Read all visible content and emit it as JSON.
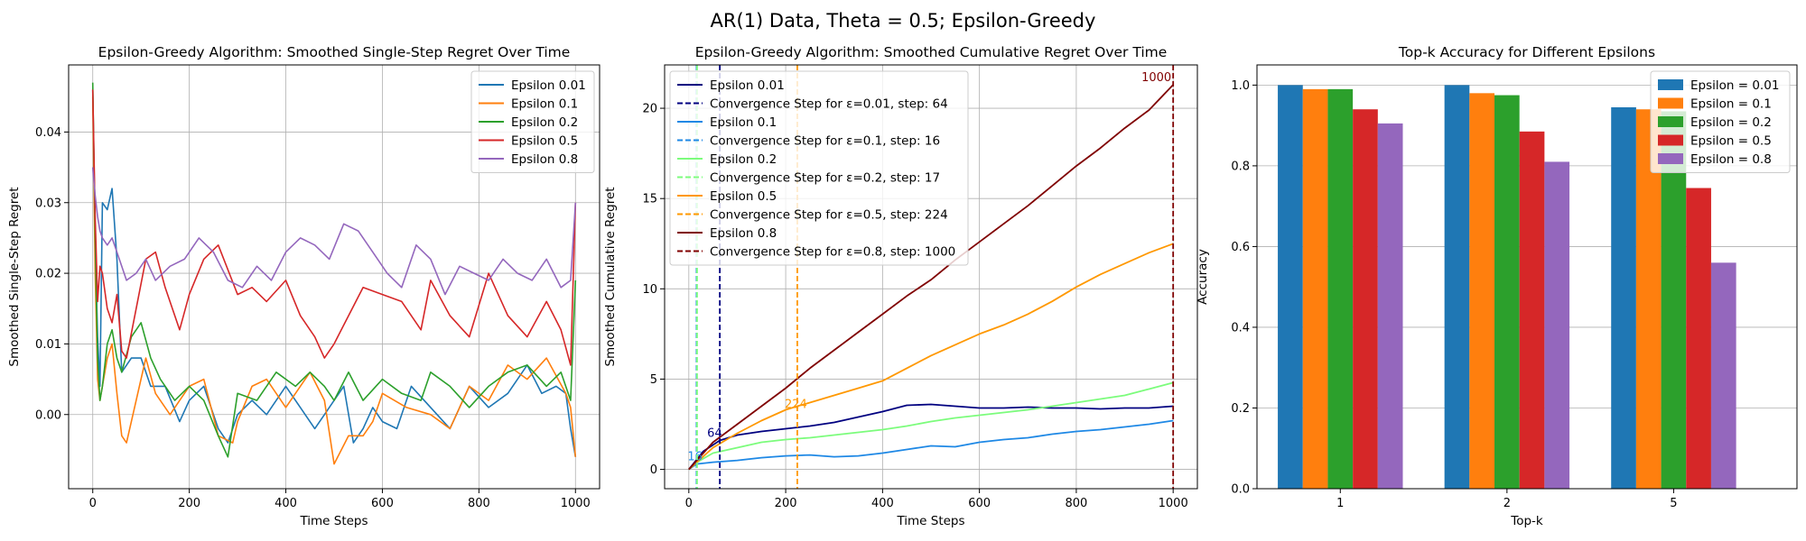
{
  "figure": {
    "suptitle": "AR(1) Data, Theta = 0.5; Epsilon-Greedy"
  },
  "chart_data": [
    {
      "type": "line",
      "title": "Epsilon-Greedy Algorithm: Smoothed Single-Step Regret Over Time",
      "xlabel": "Time Steps",
      "ylabel": "Smoothed Single-Step Regret",
      "xlim": [
        -50,
        1050
      ],
      "ylim": [
        -0.0105,
        0.0495
      ],
      "xticks": [
        0,
        200,
        400,
        600,
        800,
        1000
      ],
      "yticks": [
        0.0,
        0.01,
        0.02,
        0.03,
        0.04
      ],
      "ytick_labels": [
        "0.00",
        "0.01",
        "0.02",
        "0.03",
        "0.04"
      ],
      "grid": true,
      "legend_position": "top-right",
      "series": [
        {
          "name": "Epsilon 0.01",
          "color": "#1f77b4",
          "x": [
            0,
            5,
            10,
            15,
            20,
            30,
            40,
            50,
            60,
            80,
            100,
            120,
            150,
            180,
            200,
            230,
            260,
            280,
            300,
            330,
            360,
            400,
            430,
            460,
            480,
            500,
            520,
            540,
            560,
            580,
            600,
            630,
            660,
            700,
            740,
            780,
            820,
            860,
            900,
            930,
            960,
            980,
            990,
            1000
          ],
          "y": [
            0.046,
            0.024,
            0.011,
            0.004,
            0.03,
            0.029,
            0.032,
            0.022,
            0.006,
            0.008,
            0.008,
            0.004,
            0.004,
            -0.001,
            0.002,
            0.004,
            -0.002,
            -0.004,
            0.0,
            0.002,
            0.0,
            0.004,
            0.001,
            -0.002,
            0.0,
            0.002,
            0.004,
            -0.004,
            -0.002,
            0.001,
            -0.001,
            -0.002,
            0.004,
            0.001,
            -0.002,
            0.004,
            0.001,
            0.003,
            0.007,
            0.003,
            0.004,
            0.003,
            -0.002,
            -0.006
          ]
        },
        {
          "name": "Epsilon 0.1",
          "color": "#ff7f0e",
          "x": [
            0,
            5,
            10,
            15,
            20,
            30,
            40,
            50,
            60,
            70,
            90,
            110,
            130,
            160,
            200,
            230,
            260,
            290,
            300,
            330,
            360,
            400,
            430,
            450,
            480,
            500,
            530,
            560,
            580,
            600,
            650,
            700,
            740,
            780,
            820,
            860,
            900,
            940,
            980,
            990,
            1000
          ],
          "y": [
            0.045,
            0.02,
            0.005,
            0.002,
            0.004,
            0.008,
            0.01,
            0.003,
            -0.003,
            -0.004,
            0.002,
            0.008,
            0.003,
            0.0,
            0.004,
            0.005,
            -0.003,
            -0.004,
            -0.001,
            0.004,
            0.005,
            0.001,
            0.004,
            0.006,
            0.002,
            -0.007,
            -0.003,
            -0.003,
            -0.001,
            0.003,
            0.001,
            0.0,
            -0.002,
            0.004,
            0.002,
            0.007,
            0.005,
            0.008,
            0.003,
            0.001,
            -0.006
          ]
        },
        {
          "name": "Epsilon 0.2",
          "color": "#2ca02c",
          "x": [
            0,
            5,
            10,
            15,
            20,
            30,
            40,
            50,
            60,
            80,
            100,
            120,
            140,
            170,
            200,
            230,
            260,
            280,
            300,
            340,
            380,
            420,
            450,
            480,
            500,
            530,
            560,
            600,
            640,
            680,
            700,
            740,
            780,
            820,
            860,
            900,
            940,
            970,
            990,
            1000
          ],
          "y": [
            0.047,
            0.025,
            0.008,
            0.002,
            0.004,
            0.01,
            0.012,
            0.008,
            0.006,
            0.011,
            0.013,
            0.008,
            0.005,
            0.002,
            0.004,
            0.002,
            -0.003,
            -0.006,
            0.003,
            0.002,
            0.006,
            0.004,
            0.006,
            0.004,
            0.002,
            0.006,
            0.002,
            0.005,
            0.003,
            0.002,
            0.006,
            0.004,
            0.001,
            0.004,
            0.006,
            0.007,
            0.004,
            0.006,
            0.002,
            0.019
          ]
        },
        {
          "name": "Epsilon 0.5",
          "color": "#d62728",
          "x": [
            0,
            5,
            10,
            15,
            20,
            30,
            40,
            50,
            60,
            70,
            90,
            110,
            130,
            150,
            180,
            200,
            230,
            260,
            300,
            330,
            360,
            400,
            430,
            460,
            480,
            500,
            530,
            560,
            600,
            640,
            680,
            700,
            740,
            780,
            820,
            860,
            900,
            940,
            970,
            990,
            1000
          ],
          "y": [
            0.046,
            0.028,
            0.016,
            0.021,
            0.02,
            0.015,
            0.013,
            0.017,
            0.009,
            0.008,
            0.015,
            0.022,
            0.023,
            0.018,
            0.012,
            0.017,
            0.022,
            0.024,
            0.017,
            0.018,
            0.016,
            0.019,
            0.014,
            0.011,
            0.008,
            0.01,
            0.014,
            0.018,
            0.017,
            0.016,
            0.012,
            0.019,
            0.014,
            0.011,
            0.02,
            0.014,
            0.011,
            0.016,
            0.012,
            0.007,
            0.03
          ]
        },
        {
          "name": "Epsilon 0.8",
          "color": "#9467bd",
          "x": [
            0,
            5,
            10,
            15,
            20,
            30,
            40,
            50,
            60,
            70,
            90,
            110,
            130,
            160,
            190,
            220,
            250,
            280,
            310,
            340,
            370,
            400,
            430,
            460,
            490,
            520,
            550,
            580,
            610,
            640,
            670,
            700,
            730,
            760,
            790,
            820,
            850,
            880,
            910,
            940,
            970,
            990,
            1000
          ],
          "y": [
            0.035,
            0.031,
            0.028,
            0.026,
            0.025,
            0.024,
            0.025,
            0.023,
            0.021,
            0.019,
            0.02,
            0.022,
            0.019,
            0.021,
            0.022,
            0.025,
            0.023,
            0.019,
            0.018,
            0.021,
            0.019,
            0.023,
            0.025,
            0.024,
            0.022,
            0.027,
            0.026,
            0.023,
            0.02,
            0.018,
            0.024,
            0.022,
            0.017,
            0.021,
            0.02,
            0.019,
            0.022,
            0.02,
            0.019,
            0.022,
            0.018,
            0.019,
            0.03
          ]
        }
      ]
    },
    {
      "type": "line",
      "title": "Epsilon-Greedy Algorithm: Smoothed Cumulative Regret Over Time",
      "xlabel": "Time Steps",
      "ylabel": "Smoothed Cumulative Regret",
      "xlim": [
        -50,
        1050
      ],
      "ylim": [
        -1.07,
        22.4
      ],
      "xticks": [
        0,
        200,
        400,
        600,
        800,
        1000
      ],
      "yticks": [
        0,
        5,
        10,
        15,
        20
      ],
      "grid": true,
      "legend_position": "top-left",
      "series": [
        {
          "name": "Epsilon 0.01",
          "color": "#000080",
          "x": [
            0,
            30,
            64,
            100,
            150,
            200,
            250,
            300,
            350,
            400,
            450,
            500,
            550,
            600,
            650,
            700,
            750,
            800,
            850,
            900,
            950,
            1000
          ],
          "y": [
            0,
            1.0,
            1.6,
            1.9,
            2.1,
            2.25,
            2.4,
            2.6,
            2.9,
            3.2,
            3.55,
            3.6,
            3.5,
            3.4,
            3.4,
            3.45,
            3.4,
            3.4,
            3.35,
            3.4,
            3.4,
            3.5
          ]
        },
        {
          "name": "Epsilon 0.1",
          "color": "#1e88e5",
          "x": [
            0,
            16,
            50,
            100,
            150,
            200,
            250,
            300,
            350,
            400,
            450,
            500,
            550,
            600,
            650,
            700,
            750,
            800,
            850,
            900,
            950,
            1000
          ],
          "y": [
            0,
            0.3,
            0.4,
            0.5,
            0.65,
            0.75,
            0.8,
            0.7,
            0.75,
            0.9,
            1.1,
            1.3,
            1.25,
            1.5,
            1.65,
            1.75,
            1.95,
            2.1,
            2.2,
            2.35,
            2.5,
            2.7
          ]
        },
        {
          "name": "Epsilon 0.2",
          "color": "#7cfc7c",
          "x": [
            0,
            17,
            50,
            100,
            150,
            200,
            250,
            300,
            350,
            400,
            450,
            500,
            550,
            600,
            650,
            700,
            750,
            800,
            850,
            900,
            950,
            1000
          ],
          "y": [
            0,
            0.4,
            0.9,
            1.2,
            1.5,
            1.65,
            1.75,
            1.9,
            2.05,
            2.2,
            2.4,
            2.65,
            2.85,
            3.0,
            3.15,
            3.3,
            3.5,
            3.7,
            3.9,
            4.1,
            4.45,
            4.8
          ]
        },
        {
          "name": "Epsilon 0.5",
          "color": "#ff9800",
          "x": [
            0,
            50,
            100,
            150,
            200,
            224,
            250,
            300,
            350,
            400,
            450,
            500,
            550,
            600,
            650,
            700,
            750,
            800,
            850,
            900,
            950,
            1000
          ],
          "y": [
            0,
            1.2,
            2.0,
            2.7,
            3.3,
            3.5,
            3.7,
            4.1,
            4.5,
            4.9,
            5.6,
            6.3,
            6.9,
            7.5,
            8.0,
            8.6,
            9.3,
            10.1,
            10.8,
            11.4,
            12.0,
            12.5
          ]
        },
        {
          "name": "Epsilon 0.8",
          "color": "#800000",
          "x": [
            0,
            50,
            100,
            150,
            200,
            250,
            300,
            350,
            400,
            450,
            500,
            550,
            600,
            650,
            700,
            750,
            800,
            850,
            900,
            950,
            1000
          ],
          "y": [
            0,
            1.5,
            2.5,
            3.5,
            4.5,
            5.6,
            6.6,
            7.6,
            8.6,
            9.6,
            10.5,
            11.6,
            12.6,
            13.6,
            14.6,
            15.7,
            16.8,
            17.8,
            18.9,
            19.9,
            21.3
          ]
        }
      ],
      "convergence": [
        {
          "name": "Convergence Step for ε=0.01, step: 64",
          "step": 64,
          "label": "64",
          "color": "#000080",
          "label_y": 1.8
        },
        {
          "name": "Convergence Step for ε=0.1, step: 16",
          "step": 16,
          "label": "16",
          "color": "#1e88e5",
          "label_y": 0.5
        },
        {
          "name": "Convergence Step for ε=0.2, step: 17",
          "step": 17,
          "label": "",
          "color": "#7cfc7c",
          "label_y": 0.5
        },
        {
          "name": "Convergence Step for ε=0.5, step: 224",
          "step": 224,
          "label": "224",
          "color": "#ff9800",
          "label_y": 3.4
        },
        {
          "name": "Convergence Step for ε=0.8, step: 1000",
          "step": 1000,
          "label": "1000",
          "color": "#800000",
          "label_y": 21.5
        }
      ]
    },
    {
      "type": "bar",
      "title": "Top-k Accuracy for Different Epsilons",
      "xlabel": "Top-k",
      "ylabel": "Accuracy",
      "categories": [
        "1",
        "2",
        "5"
      ],
      "ylim": [
        0,
        1.05
      ],
      "yticks": [
        0.0,
        0.2,
        0.4,
        0.6,
        0.8,
        1.0
      ],
      "ytick_labels": [
        "0.0",
        "0.2",
        "0.4",
        "0.6",
        "0.8",
        "1.0"
      ],
      "grid": true,
      "legend_position": "top-right",
      "series": [
        {
          "name": "Epsilon = 0.01",
          "color": "#1f77b4",
          "values": [
            1.0,
            1.0,
            0.945
          ]
        },
        {
          "name": "Epsilon = 0.1",
          "color": "#ff7f0e",
          "values": [
            0.99,
            0.98,
            0.94
          ]
        },
        {
          "name": "Epsilon = 0.2",
          "color": "#2ca02c",
          "values": [
            0.99,
            0.975,
            0.935
          ]
        },
        {
          "name": "Epsilon = 0.5",
          "color": "#d62728",
          "values": [
            0.94,
            0.885,
            0.745
          ]
        },
        {
          "name": "Epsilon = 0.8",
          "color": "#9467bd",
          "values": [
            0.905,
            0.81,
            0.56
          ]
        }
      ]
    }
  ]
}
